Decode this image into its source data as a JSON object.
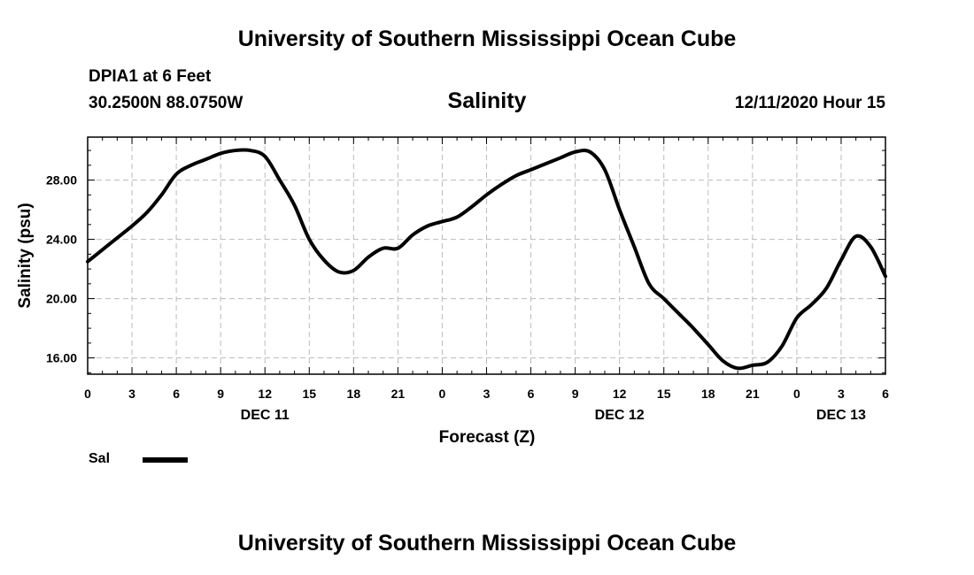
{
  "header": {
    "title": "University of Southern Mississippi Ocean Cube",
    "station": "DPIA1 at 6 Feet",
    "coords": "30.2500N 88.0750W",
    "subtitle": "Salinity",
    "datetime": "12/11/2020 Hour 15"
  },
  "footer": {
    "title": "University of Southern Mississippi Ocean Cube"
  },
  "legend": {
    "label": "Sal",
    "color": "#000000"
  },
  "chart_data": {
    "type": "line",
    "title": "Salinity",
    "xlabel": "Forecast (Z)",
    "ylabel": "Salinity (psu)",
    "xlim": [
      0,
      54
    ],
    "ylim": [
      14.9,
      30.9
    ],
    "grid": true,
    "legend_position": "bottom-left",
    "xticks": [
      {
        "x": 0,
        "label": "0"
      },
      {
        "x": 3,
        "label": "3"
      },
      {
        "x": 6,
        "label": "6"
      },
      {
        "x": 9,
        "label": "9"
      },
      {
        "x": 12,
        "label": "12"
      },
      {
        "x": 15,
        "label": "15"
      },
      {
        "x": 18,
        "label": "18"
      },
      {
        "x": 21,
        "label": "21"
      },
      {
        "x": 24,
        "label": "0"
      },
      {
        "x": 27,
        "label": "3"
      },
      {
        "x": 30,
        "label": "6"
      },
      {
        "x": 33,
        "label": "9"
      },
      {
        "x": 36,
        "label": "12"
      },
      {
        "x": 39,
        "label": "15"
      },
      {
        "x": 42,
        "label": "18"
      },
      {
        "x": 45,
        "label": "21"
      },
      {
        "x": 48,
        "label": "0"
      },
      {
        "x": 51,
        "label": "3"
      },
      {
        "x": 54,
        "label": "6"
      }
    ],
    "day_labels": [
      {
        "x": 12,
        "label": "DEC 11"
      },
      {
        "x": 36,
        "label": "DEC 12"
      },
      {
        "x": 51,
        "label": "DEC 13"
      }
    ],
    "yticks": [
      {
        "y": 16,
        "label": "16.00"
      },
      {
        "y": 20,
        "label": "20.00"
      },
      {
        "y": 24,
        "label": "24.00"
      },
      {
        "y": 28,
        "label": "28.00"
      }
    ],
    "series": [
      {
        "name": "Sal",
        "color": "#000000",
        "x": [
          0,
          1,
          2,
          3,
          4,
          5,
          6,
          7,
          8,
          9,
          10,
          11,
          12,
          13,
          14,
          15,
          16,
          17,
          18,
          19,
          20,
          21,
          22,
          23,
          24,
          25,
          26,
          27,
          28,
          29,
          30,
          31,
          32,
          33,
          34,
          35,
          36,
          37,
          38,
          39,
          40,
          41,
          42,
          43,
          44,
          45,
          46,
          47,
          48,
          49,
          50,
          51,
          52,
          53,
          54
        ],
        "y": [
          22.5,
          23.3,
          24.1,
          24.9,
          25.8,
          27.0,
          28.4,
          29.0,
          29.4,
          29.8,
          30.0,
          30.0,
          29.6,
          28.0,
          26.3,
          24.0,
          22.6,
          21.8,
          21.9,
          22.8,
          23.4,
          23.4,
          24.3,
          24.9,
          25.2,
          25.5,
          26.2,
          27.0,
          27.7,
          28.3,
          28.7,
          29.1,
          29.5,
          29.9,
          29.9,
          28.7,
          26.0,
          23.5,
          21.0,
          20.0,
          19.0,
          18.0,
          16.9,
          15.8,
          15.3,
          15.5,
          15.7,
          16.8,
          18.7,
          19.6,
          20.7,
          22.6,
          24.2,
          23.5,
          21.5
        ]
      }
    ]
  }
}
